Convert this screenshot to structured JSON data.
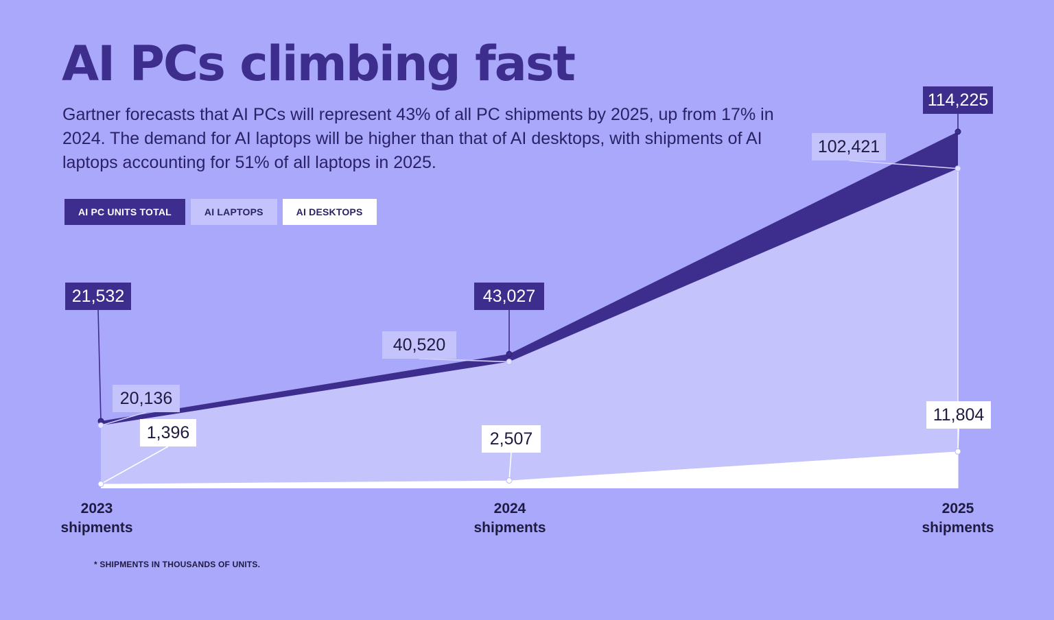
{
  "title": "AI PCs climbing fast",
  "subtitle": "Gartner forecasts that AI PCs will represent 43% of all PC shipments by 2025, up from 17% in 2024. The demand for AI laptops will be higher than that of AI desktops, with shipments of AI laptops accounting for 51% of all laptops in 2025.",
  "footnote": "* SHIPMENTS IN THOUSANDS OF UNITS.",
  "colors": {
    "background": "#a9a8fb",
    "total": "#3d2d8c",
    "laptops": "#c4c3fb",
    "desktops": "#ffffff",
    "text": "#2a2266"
  },
  "chart_data": {
    "type": "area",
    "categories": [
      "2023",
      "2024",
      "2025"
    ],
    "x_labels": [
      {
        "year": "2023",
        "sub": "shipments"
      },
      {
        "year": "2024",
        "sub": "shipments"
      },
      {
        "year": "2025",
        "sub": "shipments"
      }
    ],
    "series": [
      {
        "name": "AI PC UNITS TOTAL",
        "values": [
          21532,
          43027,
          114225
        ],
        "labels": [
          "21,532",
          "43,027",
          "114,225"
        ]
      },
      {
        "name": "AI LAPTOPS",
        "values": [
          20136,
          40520,
          102421
        ],
        "labels": [
          "20,136",
          "40,520",
          "102,421"
        ]
      },
      {
        "name": "AI DESKTOPS",
        "values": [
          1396,
          2507,
          11804
        ],
        "labels": [
          "1,396",
          "2,507",
          "11,804"
        ]
      }
    ],
    "legend_position": "top-left",
    "grid": false
  }
}
